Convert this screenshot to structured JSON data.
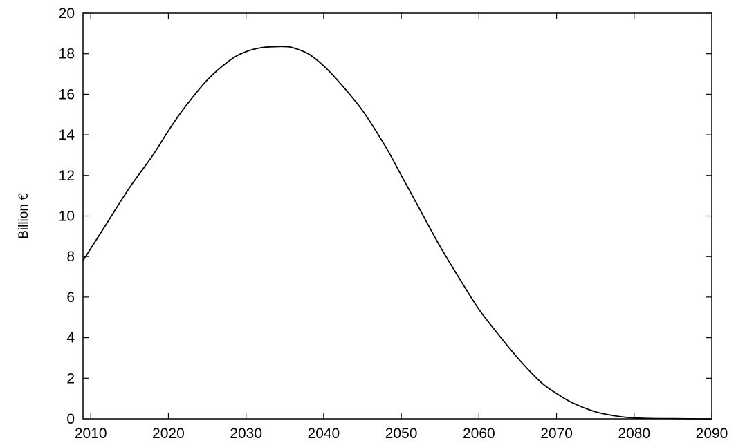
{
  "chart_data": {
    "type": "line",
    "title": "",
    "xlabel": "",
    "ylabel": "Billion €",
    "xlim": [
      2009,
      2090
    ],
    "ylim": [
      0,
      20
    ],
    "xticks": [
      2010,
      2020,
      2030,
      2040,
      2050,
      2060,
      2070,
      2080,
      2090
    ],
    "yticks": [
      0,
      2,
      4,
      6,
      8,
      10,
      12,
      14,
      16,
      18,
      20
    ],
    "grid": false,
    "legend": "none",
    "series": [
      {
        "color": "#000000",
        "x": [
          2009,
          2010,
          2012,
          2015,
          2018,
          2020,
          2022,
          2025,
          2028,
          2030,
          2032,
          2034,
          2035,
          2036,
          2038,
          2040,
          2042,
          2045,
          2048,
          2050,
          2052,
          2055,
          2058,
          2060,
          2062,
          2065,
          2068,
          2070,
          2072,
          2075,
          2078,
          2080,
          2082,
          2085,
          2088,
          2090
        ],
        "y": [
          7.8,
          8.4,
          9.6,
          11.4,
          13.0,
          14.2,
          15.3,
          16.7,
          17.7,
          18.1,
          18.3,
          18.35,
          18.35,
          18.3,
          18.0,
          17.4,
          16.6,
          15.2,
          13.4,
          12.0,
          10.6,
          8.5,
          6.6,
          5.4,
          4.4,
          3.0,
          1.8,
          1.25,
          0.8,
          0.35,
          0.12,
          0.05,
          0.02,
          0.01,
          0.0,
          0.0
        ]
      }
    ]
  }
}
